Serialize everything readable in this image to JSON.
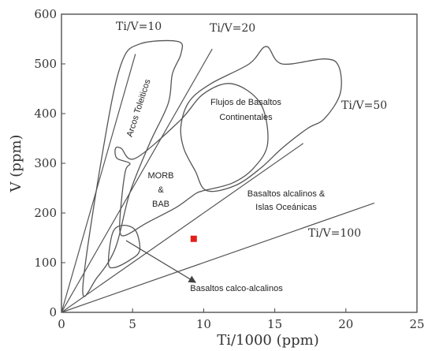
{
  "chart_data": {
    "type": "scatter",
    "title": "",
    "xlabel": "Ti/1000 (ppm)",
    "ylabel": "V (ppm)",
    "xlim": [
      0,
      25
    ],
    "ylim": [
      0,
      600
    ],
    "xticks": [
      "0",
      "5",
      "10",
      "15",
      "20",
      "25"
    ],
    "yticks": [
      "0",
      "100",
      "200",
      "300",
      "400",
      "500",
      "600"
    ],
    "reference_lines": [
      {
        "label": "Ti/V=10",
        "ratio": 10,
        "end_x": 5.2
      },
      {
        "label": "Ti/V=20",
        "ratio": 20,
        "end_x": 10.6
      },
      {
        "label": "Ti/V=50",
        "ratio": 50,
        "end_x": 17.0
      },
      {
        "label": "Ti/V=100",
        "ratio": 100,
        "end_x": 22.0
      }
    ],
    "fields": [
      {
        "label": "Arcos Toleiticos",
        "points": [
          [
            1.5,
            50
          ],
          [
            3,
            340
          ],
          [
            4.2,
            500
          ],
          [
            5.5,
            540
          ],
          [
            8.2,
            545
          ],
          [
            8.4,
            520
          ],
          [
            7.8,
            480
          ],
          [
            7.5,
            420
          ],
          [
            6.2,
            340
          ],
          [
            4.8,
            240
          ],
          [
            3.8,
            130
          ],
          [
            2.5,
            70
          ]
        ]
      },
      {
        "label": "Flujos de Basaltos Continentales",
        "points": [
          [
            8.4,
            375
          ],
          [
            9,
            425
          ],
          [
            10.5,
            460
          ],
          [
            13.2,
            500
          ],
          [
            14.4,
            535
          ],
          [
            15.5,
            500
          ],
          [
            18.5,
            510
          ],
          [
            19.5,
            495
          ],
          [
            19.6,
            440
          ],
          [
            18.5,
            390
          ],
          [
            17.3,
            370
          ],
          [
            15.5,
            330
          ],
          [
            14,
            290
          ],
          [
            12.2,
            255
          ],
          [
            10.2,
            245
          ],
          [
            9.4,
            285
          ],
          [
            8.6,
            330
          ]
        ]
      },
      {
        "label": "MORB & BAB",
        "points": [
          [
            3.8,
            330
          ],
          [
            4.2,
            330
          ],
          [
            5.2,
            310
          ],
          [
            8.3,
            385
          ],
          [
            10,
            440
          ],
          [
            12,
            460
          ],
          [
            14,
            420
          ],
          [
            14.5,
            340
          ],
          [
            13.5,
            290
          ],
          [
            12,
            260
          ],
          [
            10,
            245
          ],
          [
            9.5,
            240
          ],
          [
            9,
            230
          ],
          [
            8,
            210
          ],
          [
            6,
            180
          ],
          [
            4.5,
            155
          ],
          [
            4.1,
            165
          ],
          [
            4.2,
            220
          ],
          [
            4.5,
            285
          ],
          [
            4.8,
            300
          ],
          [
            3.9,
            310
          ]
        ]
      },
      {
        "label": "Basaltos calco-alcalinos",
        "points": [
          [
            3.3,
            100
          ],
          [
            3.6,
            160
          ],
          [
            4.3,
            175
          ],
          [
            5.2,
            165
          ],
          [
            5.5,
            125
          ],
          [
            4.8,
            105
          ],
          [
            3.7,
            90
          ]
        ]
      }
    ],
    "field_labels": [
      "Arcos Toleiticos",
      "Flujos de Basaltos",
      "Continentales",
      "MORB",
      "&",
      "BAB",
      "Basaltos alcalinos &",
      "Islas Oceánicas",
      "Basaltos calco-alcalinos"
    ],
    "points": [
      {
        "x": 9.3,
        "y": 148,
        "color": "#e0201b",
        "marker": "square"
      }
    ],
    "grid": false,
    "legend": "none"
  }
}
